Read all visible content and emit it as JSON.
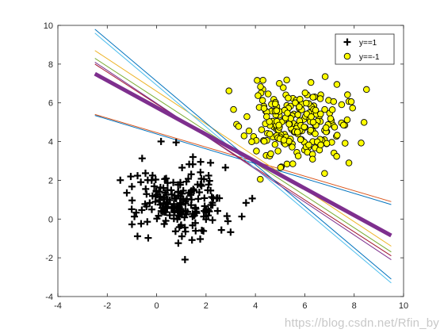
{
  "chart_data": {
    "type": "scatter",
    "title": "",
    "xlabel": "",
    "ylabel": "",
    "xlim": [
      -4,
      10
    ],
    "ylim": [
      -4,
      10
    ],
    "xticks": [
      -4,
      -2,
      0,
      2,
      4,
      6,
      8,
      10
    ],
    "yticks": [
      -4,
      -2,
      0,
      2,
      4,
      6,
      8,
      10
    ],
    "grid": false,
    "legend_position": "top-right",
    "series": [
      {
        "name": "y==1",
        "marker": "plus",
        "color": "#000000",
        "cluster": {
          "center": [
            1.0,
            0.9
          ],
          "spread": [
            0.95,
            0.95
          ],
          "count": 200,
          "seed": 7
        }
      },
      {
        "name": "y==-1",
        "marker": "circle",
        "color": "#ffff00",
        "edge_color": "#000000",
        "cluster": {
          "center": [
            5.6,
            4.9
          ],
          "spread": [
            1.0,
            1.0
          ],
          "count": 220,
          "seed": 11
        }
      }
    ],
    "lines": [
      {
        "x": [
          -2.5,
          9.5
        ],
        "y": [
          5.4,
          0.9
        ],
        "color": "#d95319",
        "width": 1
      },
      {
        "x": [
          -2.5,
          9.5
        ],
        "y": [
          5.35,
          0.75
        ],
        "color": "#0072bd",
        "width": 1
      },
      {
        "x": [
          -2.5,
          9.5
        ],
        "y": [
          8.7,
          -1.4
        ],
        "color": "#edb120",
        "width": 1
      },
      {
        "x": [
          -2.5,
          9.5
        ],
        "y": [
          8.3,
          -1.7
        ],
        "color": "#77ac30",
        "width": 1
      },
      {
        "x": [
          -2.5,
          9.5
        ],
        "y": [
          8.0,
          -1.9
        ],
        "color": "#a2142f",
        "width": 1
      },
      {
        "x": [
          -2.5,
          9.5
        ],
        "y": [
          9.8,
          -3.1
        ],
        "color": "#0072bd",
        "width": 1
      },
      {
        "x": [
          -2.5,
          9.5
        ],
        "y": [
          9.6,
          -3.3
        ],
        "color": "#4dbeee",
        "width": 1
      },
      {
        "x": [
          -2.5,
          9.5
        ],
        "y": [
          8.1,
          -2.1
        ],
        "color": "#7e2f8e",
        "width": 1
      },
      {
        "x": [
          -2.5,
          9.5
        ],
        "y": [
          7.5,
          -0.85
        ],
        "color": "#7e2f8e",
        "width": 5
      }
    ]
  },
  "watermark": "https://blog.csdn.net/Rfin_by"
}
